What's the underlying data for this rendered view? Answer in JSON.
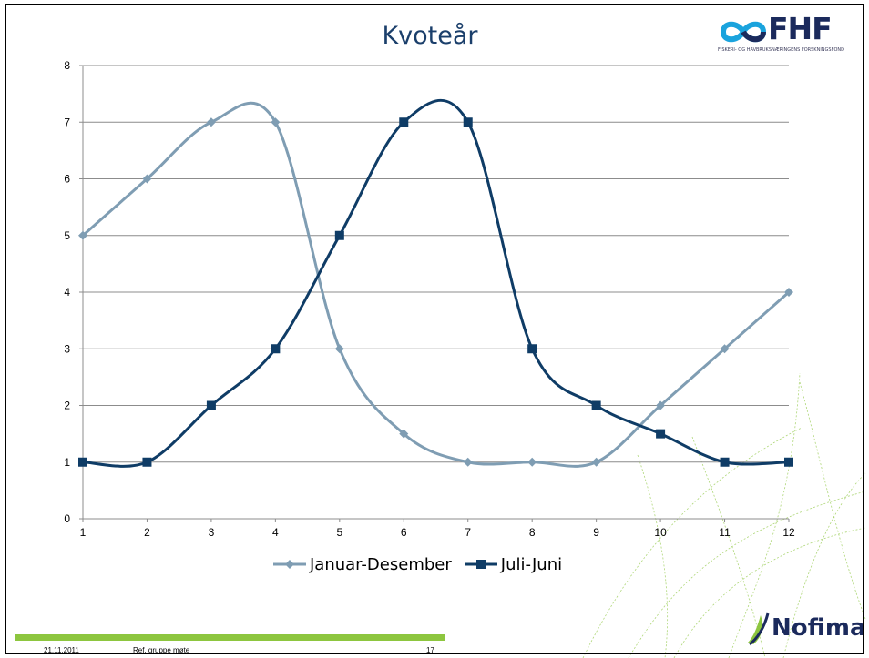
{
  "slide": {
    "title": "Kvoteår",
    "logo_top": {
      "text": "FHF",
      "subtitle": "FISKERI- OG HAVBRUKSNÆRINGENS FORSKNINGSFOND"
    },
    "logo_bottom": {
      "text": "Nofima"
    },
    "footer": {
      "date": "21.11.2011",
      "ref": "Ref. gruppe møte",
      "page": "17"
    }
  },
  "colors": {
    "series1": "#7f9db3",
    "series2": "#0f3c66",
    "grid": "#8c8c8c",
    "title": "#1b3f6b",
    "footer_bar": "#8dc63f"
  },
  "chart_data": {
    "type": "line",
    "title": "Kvoteår",
    "x": [
      1,
      2,
      3,
      4,
      5,
      6,
      7,
      8,
      9,
      10,
      11,
      12
    ],
    "xticks": [
      "1",
      "2",
      "3",
      "4",
      "5",
      "6",
      "7",
      "8",
      "9",
      "10",
      "11",
      "12"
    ],
    "ylim": [
      0,
      8
    ],
    "yticks": [
      "0",
      "1",
      "2",
      "3",
      "4",
      "5",
      "6",
      "7",
      "8"
    ],
    "grid": true,
    "smooth": true,
    "legend": "bottom",
    "series": [
      {
        "name": "Januar-Desember",
        "marker": "diamond",
        "values": [
          5,
          6,
          7,
          7,
          3,
          1.5,
          1,
          1,
          1,
          2,
          3,
          4
        ]
      },
      {
        "name": "Juli-Juni",
        "marker": "square",
        "values": [
          1,
          1,
          2,
          3,
          5,
          7,
          7,
          3,
          2,
          1.5,
          1,
          1
        ]
      }
    ]
  }
}
